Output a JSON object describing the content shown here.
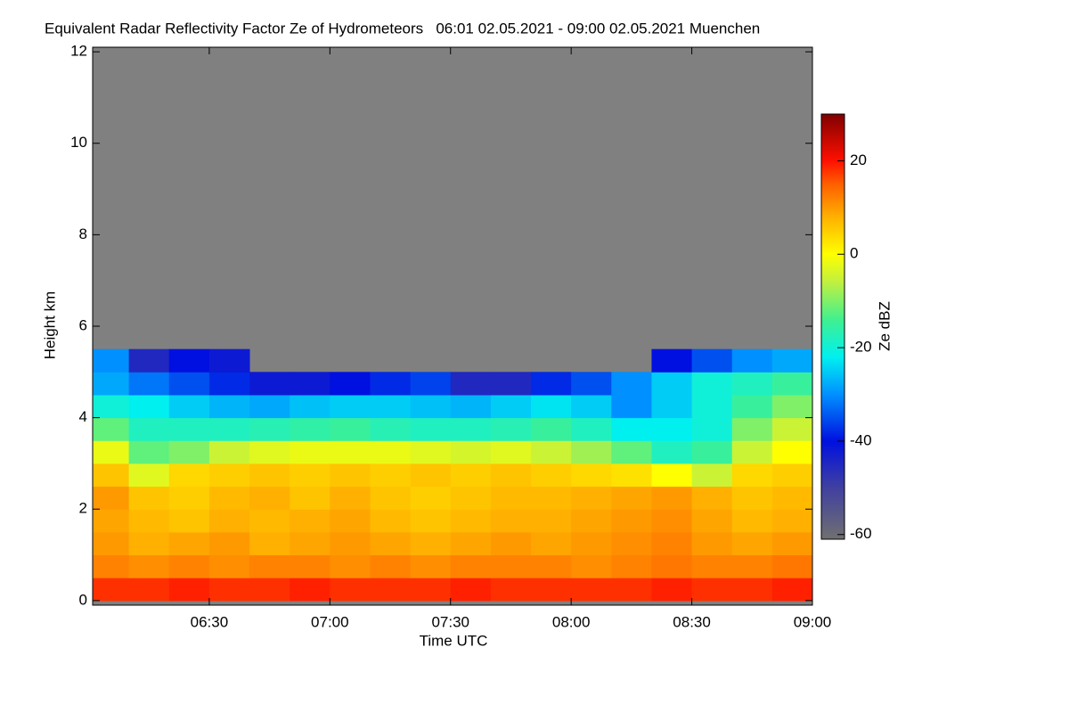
{
  "chart_data": {
    "type": "heatmap",
    "title": "Equivalent Radar Reflectivity Factor Ze of Hydrometeors   06:01 02.05.2021 - 09:00 02.05.2021 Muenchen",
    "xlabel": "Time UTC",
    "ylabel": "Height km",
    "colorbar_label": "Ze dBZ",
    "xlim": [
      1,
      180
    ],
    "xticks": [
      {
        "value": 30,
        "label": "06:30"
      },
      {
        "value": 60,
        "label": "07:00"
      },
      {
        "value": 90,
        "label": "07:30"
      },
      {
        "value": 120,
        "label": "08:00"
      },
      {
        "value": 150,
        "label": "08:30"
      },
      {
        "value": 180,
        "label": "09:00"
      }
    ],
    "ylim": [
      -0.1,
      12.1
    ],
    "yticks": [
      0,
      2,
      4,
      6,
      8,
      10,
      12
    ],
    "zlim": [
      -61,
      30
    ],
    "zticks": [
      20,
      0,
      -20,
      -40,
      -60
    ],
    "background_color": "#808080",
    "colorscale": [
      {
        "value": -61,
        "color": "#707070"
      },
      {
        "value": -50,
        "color": "#4040a0"
      },
      {
        "value": -40,
        "color": "#0010e0"
      },
      {
        "value": -30,
        "color": "#0090ff"
      },
      {
        "value": -22,
        "color": "#00f0f0"
      },
      {
        "value": -14,
        "color": "#40f090"
      },
      {
        "value": -6,
        "color": "#c0f040"
      },
      {
        "value": 0,
        "color": "#ffff00"
      },
      {
        "value": 8,
        "color": "#ffb000"
      },
      {
        "value": 15,
        "color": "#ff6000"
      },
      {
        "value": 20,
        "color": "#ff1000"
      },
      {
        "value": 30,
        "color": "#800000"
      }
    ],
    "x": [
      5,
      15,
      25,
      35,
      45,
      55,
      65,
      75,
      85,
      95,
      105,
      115,
      125,
      135,
      145,
      155,
      165,
      175
    ],
    "x_bin_width": 10,
    "y": [
      0.25,
      0.75,
      1.25,
      1.75,
      2.25,
      2.75,
      3.25,
      3.75,
      4.25,
      4.75,
      5.25
    ],
    "y_bin_height": 0.5,
    "z": [
      [
        18,
        18,
        19,
        18,
        18,
        19,
        18,
        18,
        18,
        19,
        18,
        18,
        18,
        18,
        19,
        18,
        18,
        19
      ],
      [
        12,
        11,
        12,
        11,
        12,
        12,
        11,
        12,
        11,
        12,
        12,
        12,
        11,
        12,
        13,
        12,
        12,
        13
      ],
      [
        10,
        8,
        9,
        10,
        8,
        9,
        10,
        9,
        8,
        9,
        10,
        9,
        10,
        11,
        12,
        10,
        9,
        10
      ],
      [
        9,
        7,
        6,
        8,
        7,
        8,
        9,
        7,
        6,
        7,
        8,
        8,
        9,
        10,
        11,
        9,
        7,
        8
      ],
      [
        10,
        6,
        5,
        7,
        8,
        6,
        8,
        6,
        5,
        6,
        7,
        7,
        8,
        9,
        10,
        8,
        6,
        7
      ],
      [
        6,
        -3,
        4,
        5,
        6,
        5,
        6,
        5,
        6,
        5,
        6,
        5,
        4,
        3,
        0,
        -5,
        4,
        5
      ],
      [
        -2,
        -12,
        -10,
        -5,
        -3,
        -2,
        -2,
        -2,
        -3,
        -4,
        -3,
        -5,
        -8,
        -12,
        -18,
        -15,
        -5,
        0
      ],
      [
        -12,
        -18,
        -18,
        -18,
        -17,
        -16,
        -15,
        -17,
        -18,
        -18,
        -17,
        -15,
        -18,
        -22,
        -22,
        -20,
        -10,
        -5
      ],
      [
        -20,
        -22,
        -25,
        -27,
        -28,
        -26,
        -25,
        -25,
        -26,
        -27,
        -25,
        -23,
        -25,
        -30,
        -25,
        -20,
        -15,
        -10
      ],
      [
        -28,
        -32,
        -35,
        -38,
        -42,
        -42,
        -40,
        -38,
        -36,
        -45,
        -45,
        -38,
        -35,
        -30,
        -25,
        -20,
        -18,
        -15
      ],
      [
        -30,
        -45,
        -40,
        -42,
        null,
        null,
        null,
        null,
        null,
        null,
        null,
        null,
        null,
        null,
        -40,
        -35,
        -30,
        -28
      ]
    ]
  }
}
